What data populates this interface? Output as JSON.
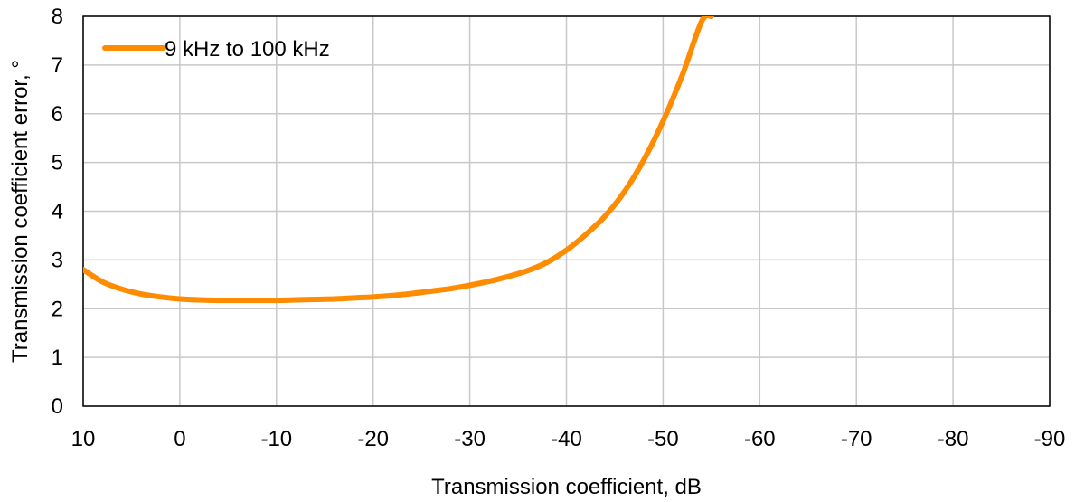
{
  "chart_data": {
    "type": "line",
    "xlabel": "Transmission coefficient, dB",
    "ylabel": "Transmission coefficient error, °",
    "xlim": [
      10,
      -90
    ],
    "ylim": [
      0,
      8
    ],
    "x_ticks": [
      "10",
      "0",
      "-10",
      "-20",
      "-30",
      "-40",
      "-50",
      "-60",
      "-70",
      "-80",
      "-90"
    ],
    "y_ticks": [
      "0",
      "1",
      "2",
      "3",
      "4",
      "5",
      "6",
      "7",
      "8"
    ],
    "grid": true,
    "legend_position": "top-left",
    "series": [
      {
        "name": "9 kHz to 100 kHz",
        "color": "#ff8c00",
        "x": [
          10,
          8,
          6,
          4,
          2,
          0,
          -2,
          -4,
          -6,
          -8,
          -10,
          -12,
          -14,
          -16,
          -18,
          -20,
          -22,
          -24,
          -26,
          -28,
          -30,
          -32,
          -34,
          -36,
          -38,
          -40,
          -42,
          -44,
          -46,
          -48,
          -50,
          -52,
          -54,
          -55
        ],
        "y": [
          2.8,
          2.55,
          2.4,
          2.3,
          2.24,
          2.2,
          2.18,
          2.17,
          2.17,
          2.17,
          2.17,
          2.18,
          2.19,
          2.2,
          2.22,
          2.24,
          2.27,
          2.31,
          2.36,
          2.41,
          2.48,
          2.56,
          2.66,
          2.78,
          2.95,
          3.2,
          3.52,
          3.9,
          4.4,
          5.05,
          5.85,
          6.8,
          7.9,
          8.0
        ]
      }
    ]
  }
}
